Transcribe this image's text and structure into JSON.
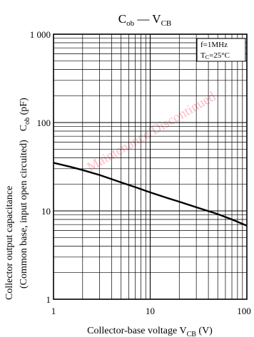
{
  "chart_data": {
    "type": "line",
    "title": {
      "main": "C",
      "sub1": "ob",
      "dash": " — V",
      "sub2": "CB"
    },
    "xlabel": {
      "text": "Collector-base voltage  V",
      "sub": "CB",
      "unit": "  (V)"
    },
    "ylabel": {
      "line1": "Collector output capacitance",
      "line2a": "(Common base, input open circuited)",
      "line2b": "C",
      "line2b_sub": "ob",
      "line2c": "  (pF)"
    },
    "x_scale": "log",
    "y_scale": "log",
    "xlim": [
      1,
      100
    ],
    "ylim": [
      1,
      1000
    ],
    "x_ticks": [
      "1",
      "10",
      "100"
    ],
    "y_ticks": [
      "1",
      "10",
      "100",
      "1 000"
    ],
    "grid": true,
    "conditions": {
      "freq": "f=1MHz",
      "temp_prefix": "T",
      "temp_sub": "C",
      "temp_value": "=25°C"
    },
    "watermark": "Maintenance/Discontinued",
    "series": [
      {
        "x": [
          1,
          1.5,
          2,
          3,
          5,
          7,
          10,
          15,
          20,
          30,
          50,
          70,
          100
        ],
        "y": [
          35,
          31.5,
          29,
          25.5,
          21,
          18.6,
          16.2,
          14,
          12.7,
          11,
          9.2,
          8,
          6.8
        ]
      }
    ],
    "colors": {
      "line": "#000000",
      "grid": "#000000",
      "watermark": "#ff3b4e"
    }
  }
}
